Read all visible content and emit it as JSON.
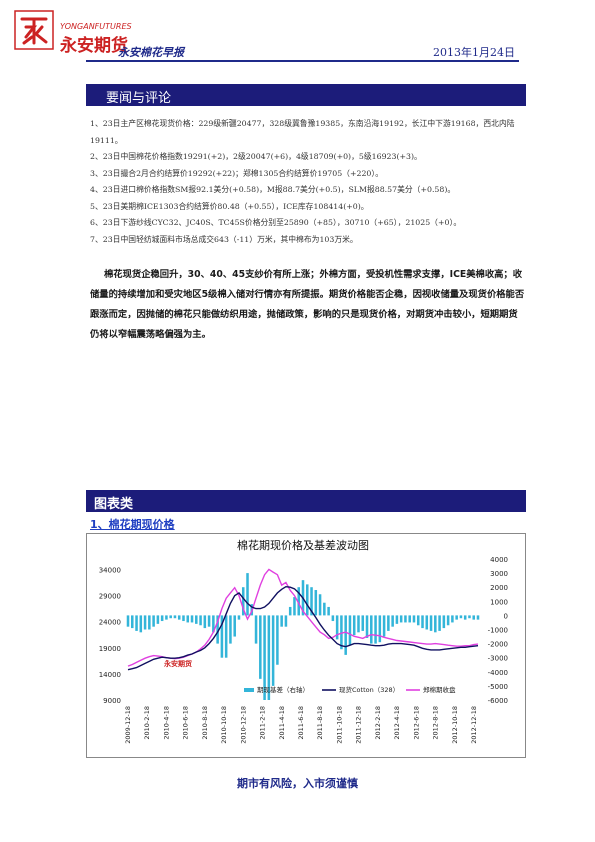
{
  "header": {
    "logo_small": "YONGANFUTURES",
    "logo_big": "永安期货",
    "report_title": "永安棉花早报",
    "date": "2013年1月24日"
  },
  "section1": {
    "title": "要闻与评论"
  },
  "news": [
    "1、23日主产区棉花现货价格：229级新疆20477，328级冀鲁豫19385，东南沿海19192，长江中下游19168，西北内陆19111。",
    "2、23日中国棉花价格指数19291(+2)，2级20047(+6)，4级18709(+0)，5级16923(+3)。",
    "3、23日撮合2月合约结算价19292(+22)；郑棉1305合约结算价19705（+220）。",
    "4、23日进口棉价格指数SM报92.1美分(+0.58)，M报88.7美分(+0.5)，SLM报88.57美分（+0.58)。",
    "5、23日美期棉ICE1303合约结算价80.48（+0.55），ICE库存108414(+0)。",
    "6、23日下游纱线CYC32、JC40S、TC45S价格分别至25890（+85），30710（+65），21025（+0）。",
    "7、23日中国轻纺城面料市场总成交643（-11）万米，其中棉布为103万米。"
  ],
  "commentary": "棉花现货企稳回升，30、40、45支纱价有所上涨；外棉方面，受投机性需求支撑，ICE美棉收高；收储量的持续增加和受灾地区5级棉入储对行情亦有所提振。期货价格能否企稳，因视收储量及现货价格能否跟涨而定，因抛储的棉花只能做纺织用途，抛储政策，影响的只是现货价格，对期货冲击较小，短期期货仍将以窄幅震荡略偏强为主。",
  "section2": {
    "title": "图表类",
    "subtitle": "1、棉花期现价格"
  },
  "chart_data": {
    "type": "line",
    "title": "棉花期现价格及基差波动图",
    "watermark": "永安期货",
    "x_ticks": [
      "2009-12-18",
      "2010-2-18",
      "2010-4-18",
      "2010-6-18",
      "2010-8-18",
      "2010-10-18",
      "2010-12-18",
      "2011-2-18",
      "2011-4-18",
      "2011-6-18",
      "2011-8-18",
      "2011-10-18",
      "2011-12-18",
      "2012-2-18",
      "2012-4-18",
      "2012-6-18",
      "2012-8-18",
      "2012-10-18",
      "2012-12-18"
    ],
    "y_left_ticks": [
      "34000",
      "29000",
      "24000",
      "19000",
      "14000",
      "9000"
    ],
    "y_right_ticks": [
      "4000",
      "3000",
      "2000",
      "1000",
      "0",
      "-1000",
      "-2000",
      "-3000",
      "-4000",
      "-5000",
      "-6000"
    ],
    "ylim_left": [
      9000,
      36000
    ],
    "ylim_right": [
      -6000,
      4000
    ],
    "legend": [
      "期现基差（右轴）",
      "现货Cotton（328）",
      "郑棉期收盘"
    ],
    "colors": {
      "basis": "#33b5d9",
      "spot": "#101060",
      "futures": "#e040e0"
    },
    "series": [
      {
        "name": "现货Cotton（328）",
        "values": [
          14800,
          15000,
          15200,
          15600,
          16000,
          16400,
          16800,
          17000,
          17200,
          17100,
          17000,
          17000,
          17100,
          17300,
          17600,
          17800,
          18200,
          18500,
          19000,
          19800,
          20800,
          22000,
          23500,
          25500,
          27500,
          29000,
          29500,
          28500,
          27500,
          26800,
          26500,
          26500,
          26800,
          27500,
          28500,
          29500,
          30200,
          30700,
          30600,
          30300,
          29500,
          28500,
          27200,
          26000,
          24800,
          23500,
          22400,
          21400,
          20600,
          19800,
          19400,
          19200,
          19500,
          19800,
          19800,
          19700,
          19600,
          19500,
          19400,
          19400,
          19500,
          19700,
          19800,
          19800,
          19800,
          19700,
          19600,
          19500,
          19200,
          18900,
          18700,
          18600,
          18600,
          18600,
          18700,
          18800,
          18900,
          19000,
          19100,
          19100,
          19200,
          19300,
          19400
        ]
      },
      {
        "name": "郑棉期收盘",
        "values": [
          15500,
          15800,
          16200,
          16600,
          17000,
          17300,
          17500,
          17400,
          17300,
          17100,
          17000,
          16900,
          17000,
          17200,
          17500,
          17800,
          18200,
          18800,
          19500,
          20600,
          22000,
          24000,
          26500,
          28500,
          29500,
          30500,
          29000,
          26500,
          24500,
          26000,
          28500,
          31000,
          33000,
          34000,
          33500,
          33000,
          31000,
          31500,
          30000,
          29000,
          27500,
          26000,
          25000,
          24000,
          23000,
          22000,
          21500,
          20800,
          21000,
          21500,
          21800,
          22000,
          21600,
          21200,
          21000,
          20800,
          21200,
          21500,
          21400,
          21300,
          21000,
          20800,
          20600,
          20400,
          20300,
          20200,
          20100,
          20000,
          19900,
          19800,
          19700,
          19700,
          19800,
          19700,
          19600,
          19500,
          19400,
          19300,
          19300,
          19400,
          19400,
          19600,
          19700
        ]
      },
      {
        "name": "期现基差（右轴）",
        "values": [
          -800,
          -900,
          -1100,
          -1200,
          -1000,
          -1000,
          -800,
          -600,
          -400,
          -300,
          -200,
          -200,
          -300,
          -400,
          -500,
          -500,
          -600,
          -700,
          -900,
          -800,
          -1200,
          -2000,
          -3000,
          -3000,
          -2000,
          -1500,
          -300,
          2000,
          3000,
          800,
          -2000,
          -4500,
          -6000,
          -6000,
          -5000,
          -3500,
          -800,
          -800,
          600,
          1300,
          2000,
          2500,
          2200,
          2000,
          1800,
          1500,
          900,
          600,
          -400,
          -1700,
          -2400,
          -2800,
          -2100,
          -1400,
          -1200,
          -1100,
          -1600,
          -2000,
          -2000,
          -1900,
          -1500,
          -1100,
          -800,
          -600,
          -500,
          -500,
          -500,
          -500,
          -700,
          -900,
          -1000,
          -1100,
          -1200,
          -1100,
          -900,
          -700,
          -500,
          -300,
          -200,
          -300,
          -200,
          -300,
          -300
        ]
      }
    ]
  },
  "footer": "期市有风险，入市须谨慎"
}
